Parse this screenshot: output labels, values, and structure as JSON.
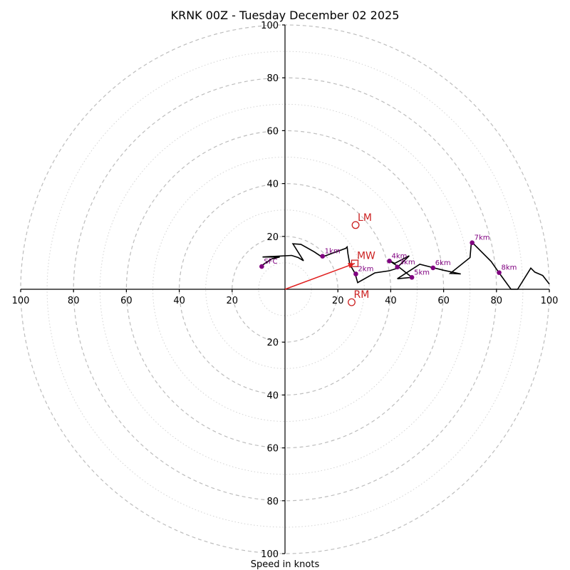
{
  "chart_data": {
    "type": "hodograph",
    "title": "KRNK 00Z - Tuesday December 02 2025",
    "xlabel": "Speed in knots",
    "units": "knots",
    "range": [
      -100,
      100
    ],
    "major_rings": [
      20,
      40,
      60,
      80,
      100
    ],
    "minor_rings": [
      10,
      30,
      50,
      70,
      90
    ],
    "x_tick_labels": [
      "100",
      "80",
      "60",
      "40",
      "20",
      "20",
      "40",
      "60",
      "80",
      "100"
    ],
    "x_tick_values": [
      -100,
      -80,
      -60,
      -40,
      -20,
      20,
      40,
      60,
      80,
      100
    ],
    "y_tick_labels": [
      "100",
      "80",
      "60",
      "40",
      "20",
      "20",
      "40",
      "60",
      "80",
      "100"
    ],
    "y_tick_values": [
      100,
      80,
      60,
      40,
      20,
      -20,
      -40,
      -60,
      -80,
      -100
    ],
    "trace": [
      [
        -8.5,
        9.2
      ],
      [
        -5,
        11.5
      ],
      [
        -2,
        12.2
      ],
      [
        -8.5,
        12.2
      ],
      [
        2.5,
        12.8
      ],
      [
        5,
        12
      ],
      [
        7,
        10.8
      ],
      [
        3,
        17.2
      ],
      [
        6,
        17
      ],
      [
        11,
        14.2
      ],
      [
        14,
        12.2
      ],
      [
        23,
        15.5
      ],
      [
        23.5,
        16
      ],
      [
        23.8,
        13.5
      ],
      [
        24.5,
        9.5
      ],
      [
        26.5,
        6
      ],
      [
        27.5,
        2.5
      ],
      [
        34,
        6.2
      ],
      [
        39.5,
        7
      ],
      [
        42,
        7.8
      ],
      [
        47,
        12.7
      ],
      [
        41.5,
        9.8
      ],
      [
        39.5,
        10.8
      ],
      [
        43,
        8.5
      ],
      [
        48,
        4.5
      ],
      [
        42.5,
        4
      ],
      [
        51,
        9.5
      ],
      [
        56,
        8.2
      ],
      [
        60,
        7.2
      ],
      [
        66.5,
        5.8
      ],
      [
        62.5,
        6
      ],
      [
        70,
        12
      ],
      [
        70.5,
        18
      ],
      [
        78,
        10.5
      ],
      [
        81,
        6.2
      ],
      [
        85.5,
        0
      ],
      [
        88,
        0
      ],
      [
        93,
        8
      ],
      [
        94.5,
        6.5
      ],
      [
        97.5,
        5.2
      ],
      [
        100,
        2
      ]
    ],
    "height_markers": [
      {
        "label": "1km",
        "u": 14.2,
        "v": 12.5
      },
      {
        "label": "2km",
        "u": 26.8,
        "v": 5.8
      },
      {
        "label": "3km",
        "u": 42.5,
        "v": 8.4
      },
      {
        "label": "4km",
        "u": 39.5,
        "v": 10.7
      },
      {
        "label": "5km",
        "u": 48,
        "v": 4.5
      },
      {
        "label": "6km",
        "u": 56,
        "v": 8.1
      },
      {
        "label": "7km",
        "u": 70.8,
        "v": 17.6
      },
      {
        "label": "8km",
        "u": 81,
        "v": 6.3
      },
      {
        "label": "SFC",
        "u": -8.8,
        "v": 8.6
      }
    ],
    "storm_motion": [
      {
        "label": "LM",
        "u": 26.7,
        "v": 24.3,
        "marker": "circle"
      },
      {
        "label": "MW",
        "u": 26.4,
        "v": 9.8,
        "marker": "square"
      },
      {
        "label": "RM",
        "u": 25.2,
        "v": -4.9,
        "marker": "circle"
      }
    ],
    "motion_vector": {
      "from": [
        0,
        0
      ],
      "to": [
        26.4,
        9.8
      ]
    },
    "colors": {
      "trace": "#000000",
      "markers": "#800080",
      "storm": "#cc2222",
      "vector": "#e02020",
      "rings": "#bdbdbd"
    }
  }
}
